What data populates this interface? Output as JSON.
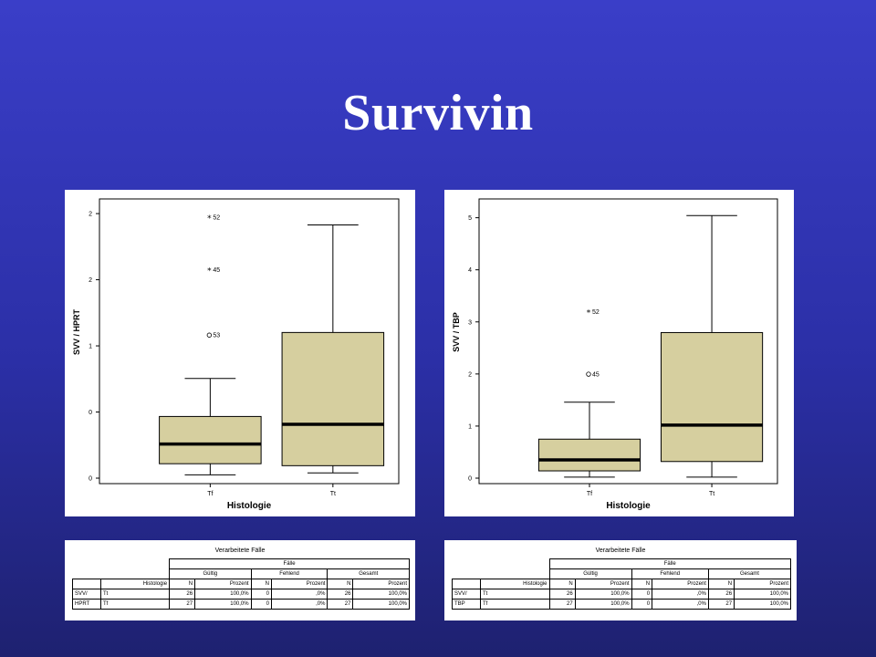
{
  "slide": {
    "title": "Survivin"
  },
  "chart_data": [
    {
      "type": "boxplot",
      "ylabel": "SVV / HPRT",
      "xlabel": "Histologie",
      "categories": [
        "Tf",
        "Tt"
      ],
      "yticks": [
        "2",
        "2",
        "1",
        "0",
        "0"
      ],
      "boxes": [
        {
          "category": "Tf",
          "whisker_low": 0.05,
          "q1": 0.22,
          "median": 0.52,
          "q3": 0.94,
          "whisker_high": 1.52
        },
        {
          "category": "Tt",
          "whisker_low": 0.08,
          "q1": 0.19,
          "median": 0.82,
          "q3": 2.22,
          "whisker_high": 3.86
        }
      ],
      "outliers": [
        {
          "category": "Tf",
          "value": 3.98,
          "label": "52",
          "marker": "star"
        },
        {
          "category": "Tf",
          "value": 3.18,
          "label": "45",
          "marker": "star"
        },
        {
          "category": "Tf",
          "value": 2.18,
          "label": "53",
          "marker": "circle"
        }
      ],
      "ylim": [
        0,
        4.2
      ]
    },
    {
      "type": "boxplot",
      "ylabel": "SVV / TBP",
      "xlabel": "Histologie",
      "categories": [
        "Tf",
        "Tt"
      ],
      "yticks": [
        "5",
        "4",
        "3",
        "2",
        "1",
        "0"
      ],
      "boxes": [
        {
          "category": "Tf",
          "whisker_low": 0.02,
          "q1": 0.14,
          "median": 0.35,
          "q3": 0.75,
          "whisker_high": 1.46
        },
        {
          "category": "Tt",
          "whisker_low": 0.02,
          "q1": 0.32,
          "median": 1.02,
          "q3": 2.8,
          "whisker_high": 5.05
        }
      ],
      "outliers": [
        {
          "category": "Tf",
          "value": 3.2,
          "label": "52",
          "marker": "star"
        },
        {
          "category": "Tf",
          "value": 2.0,
          "label": "45",
          "marker": "circle"
        }
      ],
      "ylim": [
        0,
        5.3
      ]
    }
  ],
  "tables": [
    {
      "title": "Verarbeitete Fälle",
      "cases_header": "Fälle",
      "groups": [
        "Gültig",
        "Fehlend",
        "Gesamt"
      ],
      "var_header": "Histologie",
      "col_n": "N",
      "col_pct": "Prozent",
      "variable": [
        "SVV/",
        "HPRT"
      ],
      "rows": [
        {
          "label": "Tt",
          "cells": [
            "26",
            "100,0%",
            "0",
            ",0%",
            "26",
            "100,0%"
          ]
        },
        {
          "label": "Tf",
          "cells": [
            "27",
            "100,0%",
            "0",
            ",0%",
            "27",
            "100,0%"
          ]
        }
      ]
    },
    {
      "title": "Verarbeitete Fälle",
      "cases_header": "Fälle",
      "groups": [
        "Gültig",
        "Fehlend",
        "Gesamt"
      ],
      "var_header": "Histologie",
      "col_n": "N",
      "col_pct": "Prozent",
      "variable": [
        "SVV/",
        "TBP"
      ],
      "rows": [
        {
          "label": "Tt",
          "cells": [
            "26",
            "100,0%",
            "0",
            ",0%",
            "26",
            "100,0%"
          ]
        },
        {
          "label": "Tf",
          "cells": [
            "27",
            "100,0%",
            "0",
            ",0%",
            "27",
            "100,0%"
          ]
        }
      ]
    }
  ],
  "colors": {
    "box_fill": "#d6cf9f",
    "frame": "#000000"
  }
}
